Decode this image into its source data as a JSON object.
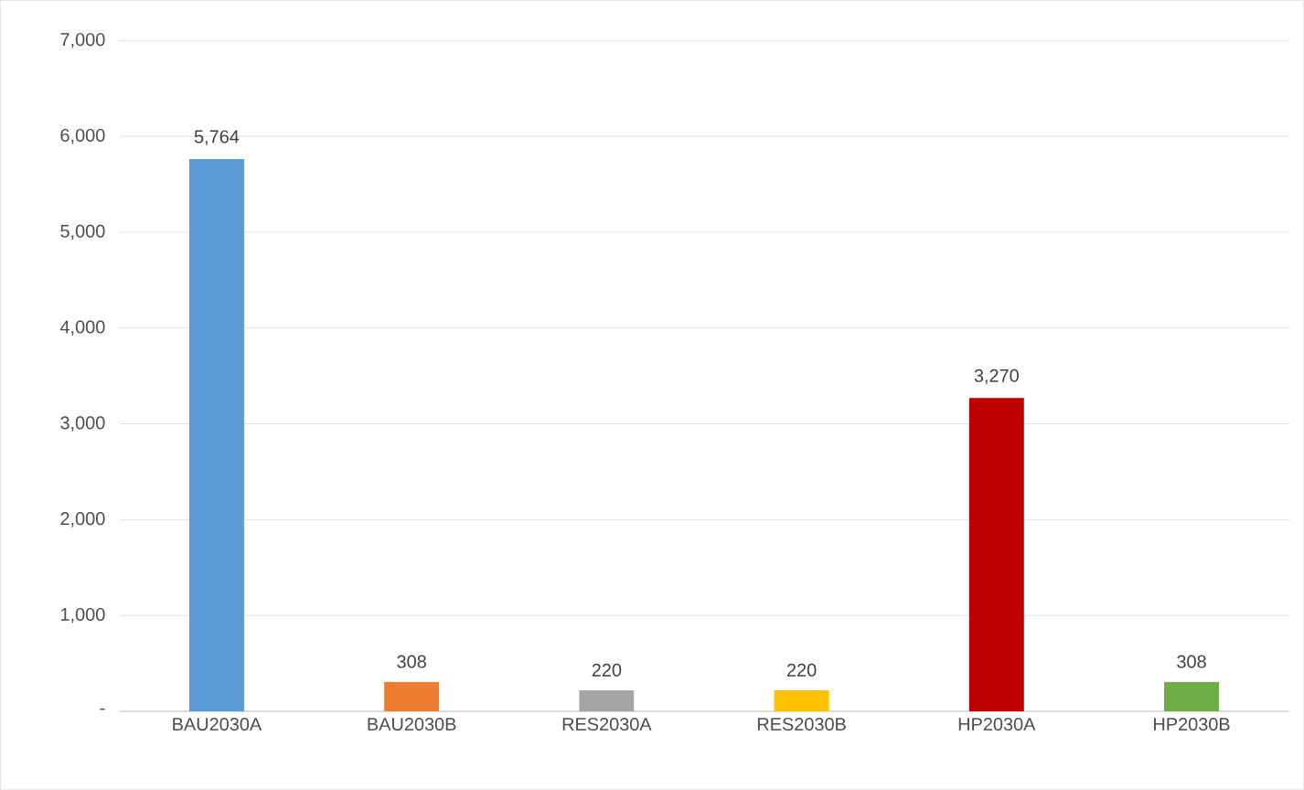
{
  "chart_data": {
    "type": "bar",
    "categories": [
      "BAU2030A",
      "BAU2030B",
      "RES2030A",
      "RES2030B",
      "HP2030A",
      "HP2030B"
    ],
    "values": [
      5764,
      308,
      220,
      220,
      3270,
      308
    ],
    "colors": [
      "#5b9bd5",
      "#ed7d31",
      "#a5a5a5",
      "#ffc000",
      "#c00000",
      "#70ad47"
    ],
    "value_labels": [
      "5,764",
      "308",
      "220",
      "220",
      "3,270",
      "308"
    ],
    "ylim": [
      0,
      7000
    ],
    "yticks": [
      {
        "value": 0,
        "label": "-"
      },
      {
        "value": 1000,
        "label": "1,000"
      },
      {
        "value": 2000,
        "label": "2,000"
      },
      {
        "value": 3000,
        "label": "3,000"
      },
      {
        "value": 4000,
        "label": "4,000"
      },
      {
        "value": 5000,
        "label": "5,000"
      },
      {
        "value": 6000,
        "label": "6,000"
      },
      {
        "value": 7000,
        "label": "7,000"
      }
    ],
    "grid": "y"
  }
}
